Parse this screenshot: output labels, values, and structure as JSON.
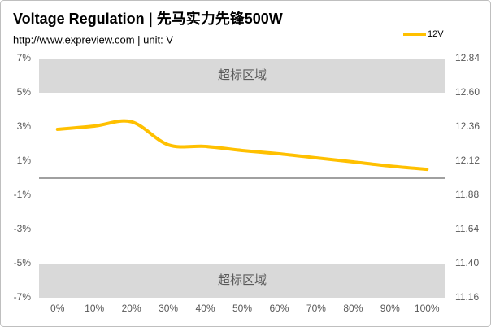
{
  "chart_data": {
    "type": "line",
    "title": "Voltage Regulation | 先马实力先锋500W",
    "subtitle": "http://www.expreview.com | unit: V",
    "categories": [
      "0%",
      "10%",
      "20%",
      "30%",
      "40%",
      "50%",
      "60%",
      "70%",
      "80%",
      "90%",
      "100%"
    ],
    "series": [
      {
        "name": "12V",
        "color": "#ffc000",
        "values": [
          2.86,
          3.05,
          3.3,
          1.95,
          1.86,
          1.62,
          1.43,
          1.19,
          0.95,
          0.71,
          0.52
        ]
      }
    ],
    "ylim": [
      -7,
      7
    ],
    "yticks": [
      {
        "value": 7,
        "label": "7%"
      },
      {
        "value": 5,
        "label": "5%"
      },
      {
        "value": 3,
        "label": "3%"
      },
      {
        "value": 1,
        "label": "1%"
      },
      {
        "value": -1,
        "label": "-1%"
      },
      {
        "value": -3,
        "label": "-3%"
      },
      {
        "value": -5,
        "label": "-5%"
      },
      {
        "value": -7,
        "label": "-7%"
      }
    ],
    "y2lim": [
      11.16,
      12.84
    ],
    "y2ticks": [
      12.84,
      {
        "value": 12.6,
        "label": "12.60"
      },
      12.36,
      12.12,
      11.88,
      11.64,
      {
        "value": 11.4,
        "label": "11.40"
      },
      11.16
    ],
    "bands": [
      {
        "from": 5,
        "to": 7,
        "label": "超标区域",
        "color": "#d9d9d9"
      },
      {
        "from": -7,
        "to": -5,
        "label": "超标区域",
        "color": "#d9d9d9"
      }
    ],
    "legend": "top-right",
    "smooth": true
  }
}
